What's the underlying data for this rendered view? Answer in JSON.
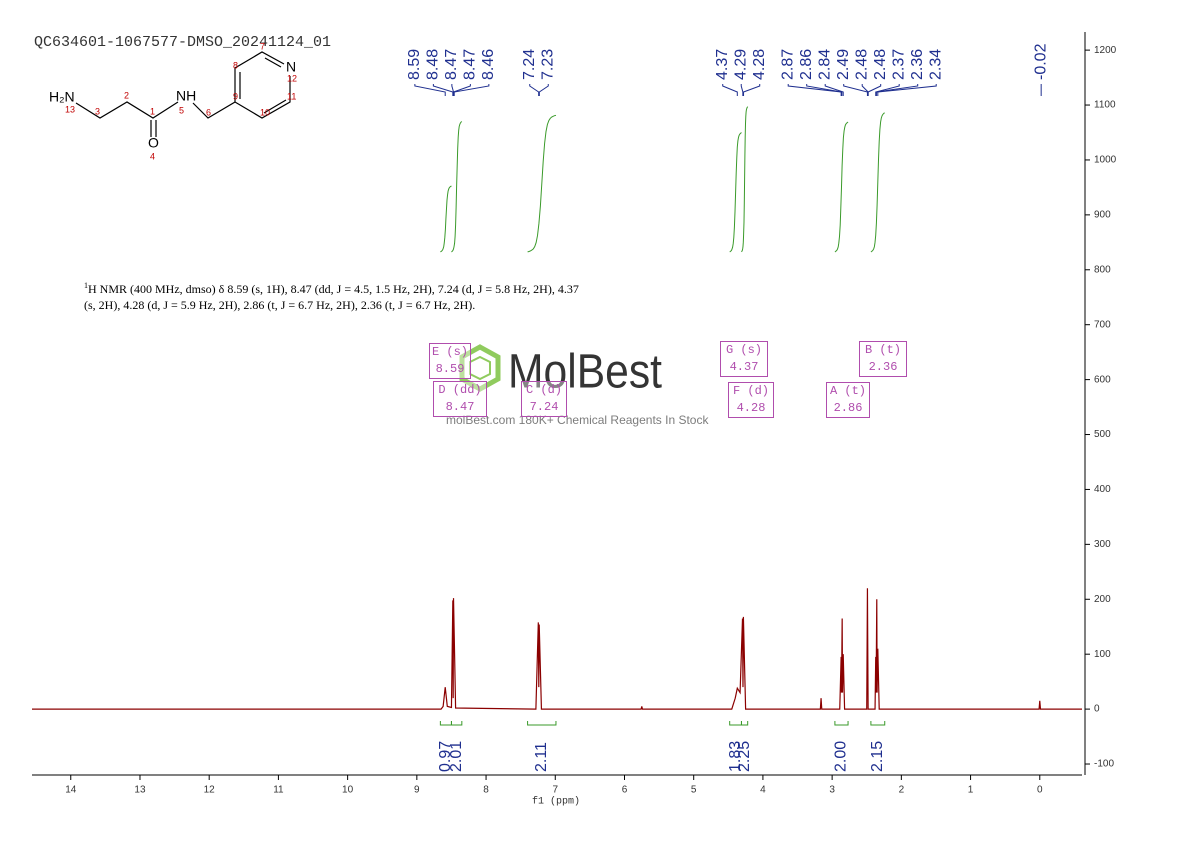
{
  "title": "QC634601-1067577-DMSO_20241124_01",
  "molecule": {
    "atoms": [
      "H₂N",
      "13",
      "3",
      "2",
      "1",
      "O",
      "4",
      "NH",
      "5",
      "6",
      "9",
      "8",
      "7",
      "N",
      "12",
      "11",
      "10"
    ]
  },
  "nmr_text": {
    "sup": "1",
    "line1": "H NMR (400 MHz, dmso) δ 8.59 (s, 1H), 8.47 (dd, J = 4.5, 1.5 Hz, 2H), 7.24 (d, J = 5.8 Hz, 2H), 4.37",
    "line2": "(s, 2H), 4.28 (d, J = 5.9 Hz, 2H), 2.86 (t, J = 6.7 Hz, 2H), 2.36 (t, J = 6.7 Hz, 2H)."
  },
  "multiplets": [
    {
      "label": "E (s)",
      "shift": 8.59
    },
    {
      "label": "D (dd)",
      "shift": 8.47
    },
    {
      "label": "C (d)",
      "shift": 7.24
    },
    {
      "label": "G (s)",
      "shift": 4.37
    },
    {
      "label": "F (d)",
      "shift": 4.28
    },
    {
      "label": "A (t)",
      "shift": 2.86
    },
    {
      "label": "B (t)",
      "shift": 2.36
    }
  ],
  "watermark": {
    "brand": "MolBest",
    "tagline": "molBest.com 180K+ Chemical Reagents In Stock"
  },
  "chart_data": {
    "type": "line",
    "color": "#8b0000",
    "xlabel": "f1 (ppm)",
    "xlim": [
      14.56,
      -0.61
    ],
    "xticks": [
      14,
      13,
      12,
      11,
      10,
      9,
      8,
      7,
      6,
      5,
      4,
      3,
      2,
      1,
      0
    ],
    "ylim": [
      -120,
      1233
    ],
    "yticks": [
      -100,
      0,
      100,
      200,
      300,
      400,
      500,
      600,
      700,
      800,
      900,
      1000,
      1100,
      1200
    ],
    "x": [
      14.56,
      8.65,
      8.62,
      8.59,
      8.56,
      8.5,
      8.48,
      8.475,
      8.47,
      8.44,
      7.28,
      7.245,
      7.238,
      7.232,
      7.2,
      5.76,
      5.75,
      5.74,
      4.45,
      4.4,
      4.37,
      4.33,
      4.295,
      4.288,
      4.282,
      4.25,
      3.17,
      3.16,
      3.15,
      2.89,
      2.87,
      2.865,
      2.855,
      2.85,
      2.84,
      2.82,
      2.5,
      2.49,
      2.48,
      2.38,
      2.37,
      2.365,
      2.355,
      2.35,
      2.34,
      2.32,
      0.01,
      0,
      -0.01,
      -0.61
    ],
    "values": [
      0,
      0,
      5,
      40,
      5,
      3,
      198,
      20,
      202,
      2,
      0,
      158,
      40,
      154,
      0,
      0,
      5,
      0,
      0,
      20,
      38,
      30,
      165,
      40,
      168,
      0,
      0,
      20,
      0,
      0,
      95,
      30,
      165,
      30,
      100,
      0,
      0,
      220,
      0,
      0,
      95,
      30,
      200,
      30,
      110,
      0,
      0,
      15,
      0,
      0
    ],
    "peak_labels": [
      8.59,
      8.48,
      8.47,
      8.47,
      8.46,
      7.24,
      7.23,
      4.37,
      4.29,
      4.28,
      2.87,
      2.86,
      2.84,
      2.49,
      2.48,
      2.48,
      2.37,
      2.36,
      2.34,
      -0.02
    ],
    "integrals": {
      "values": [
        0.97,
        2.01,
        2.11,
        1.83,
        2.25,
        2,
        2.15
      ],
      "value_labels": [
        "0.97",
        "2.01",
        "2.11",
        "1.83",
        "2.25",
        "2.00",
        "2.15"
      ],
      "ranges": [
        [
          8.66,
          8.5
        ],
        [
          8.5,
          8.35
        ],
        [
          7.4,
          6.99
        ],
        [
          4.48,
          4.31
        ],
        [
          4.31,
          4.22
        ],
        [
          2.96,
          2.77
        ],
        [
          2.44,
          2.24
        ]
      ]
    }
  }
}
